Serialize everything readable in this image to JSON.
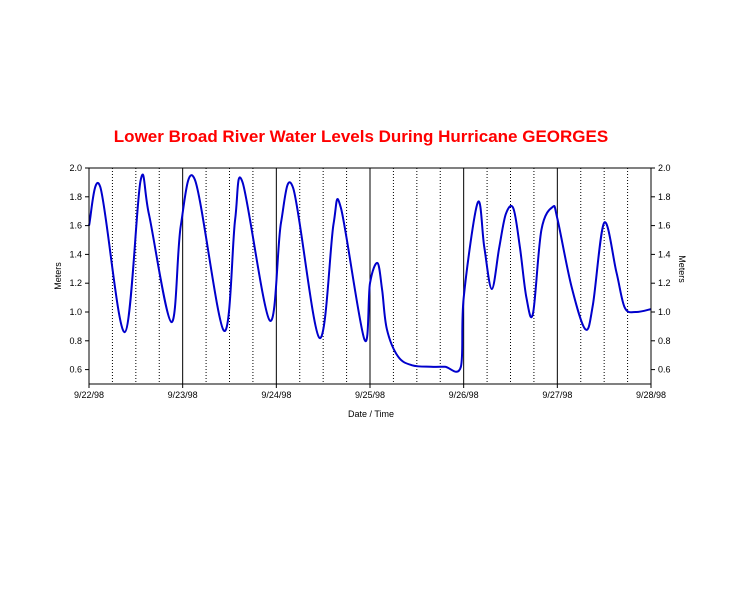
{
  "chart_data": {
    "type": "line",
    "title": "Lower Broad River Water Levels During Hurricane GEORGES",
    "xlabel": "Date / Time",
    "ylabel": "Meters",
    "ylabel_right": "Meters",
    "ylim": [
      0.5,
      2.0
    ],
    "yticks": [
      "0.6",
      "0.8",
      "1.0",
      "1.2",
      "1.4",
      "1.6",
      "1.8",
      "2.0"
    ],
    "xlim": [
      0,
      6
    ],
    "xtick_labels": [
      "9/22/98",
      "9/23/98",
      "9/24/98",
      "9/25/98",
      "9/26/98",
      "9/27/98",
      "9/28/98"
    ],
    "grid": "solid vertical line at each day, dotted vertical lines every 6 hours",
    "colors": {
      "title": "#ff0000",
      "series": "#0000cc"
    },
    "series": [
      {
        "x": [
          0.0,
          0.12,
          0.38,
          0.55,
          0.64,
          0.88,
          0.98,
          1.13,
          1.44,
          1.56,
          1.64,
          1.93,
          2.05,
          2.18,
          2.46,
          2.61,
          2.69,
          2.94,
          3.0,
          3.08,
          3.13,
          3.18,
          3.3,
          3.45,
          3.65,
          3.8,
          3.97,
          4.0,
          4.15,
          4.22,
          4.3,
          4.38,
          4.45,
          4.53,
          4.6,
          4.67,
          4.74,
          4.83,
          4.95,
          5.0,
          5.15,
          5.3,
          5.38,
          5.5,
          5.63,
          5.72,
          5.84,
          6.0
        ],
        "y": [
          1.6,
          1.87,
          0.86,
          1.91,
          1.68,
          0.93,
          1.6,
          1.92,
          0.87,
          1.64,
          1.9,
          0.94,
          1.62,
          1.86,
          0.82,
          1.61,
          1.72,
          0.81,
          1.2,
          1.34,
          1.15,
          0.88,
          0.69,
          0.63,
          0.62,
          0.62,
          0.62,
          1.1,
          1.76,
          1.45,
          1.16,
          1.45,
          1.68,
          1.72,
          1.45,
          1.1,
          0.99,
          1.57,
          1.73,
          1.65,
          1.18,
          0.88,
          1.05,
          1.62,
          1.28,
          1.03,
          1.0,
          1.02
        ]
      }
    ]
  }
}
